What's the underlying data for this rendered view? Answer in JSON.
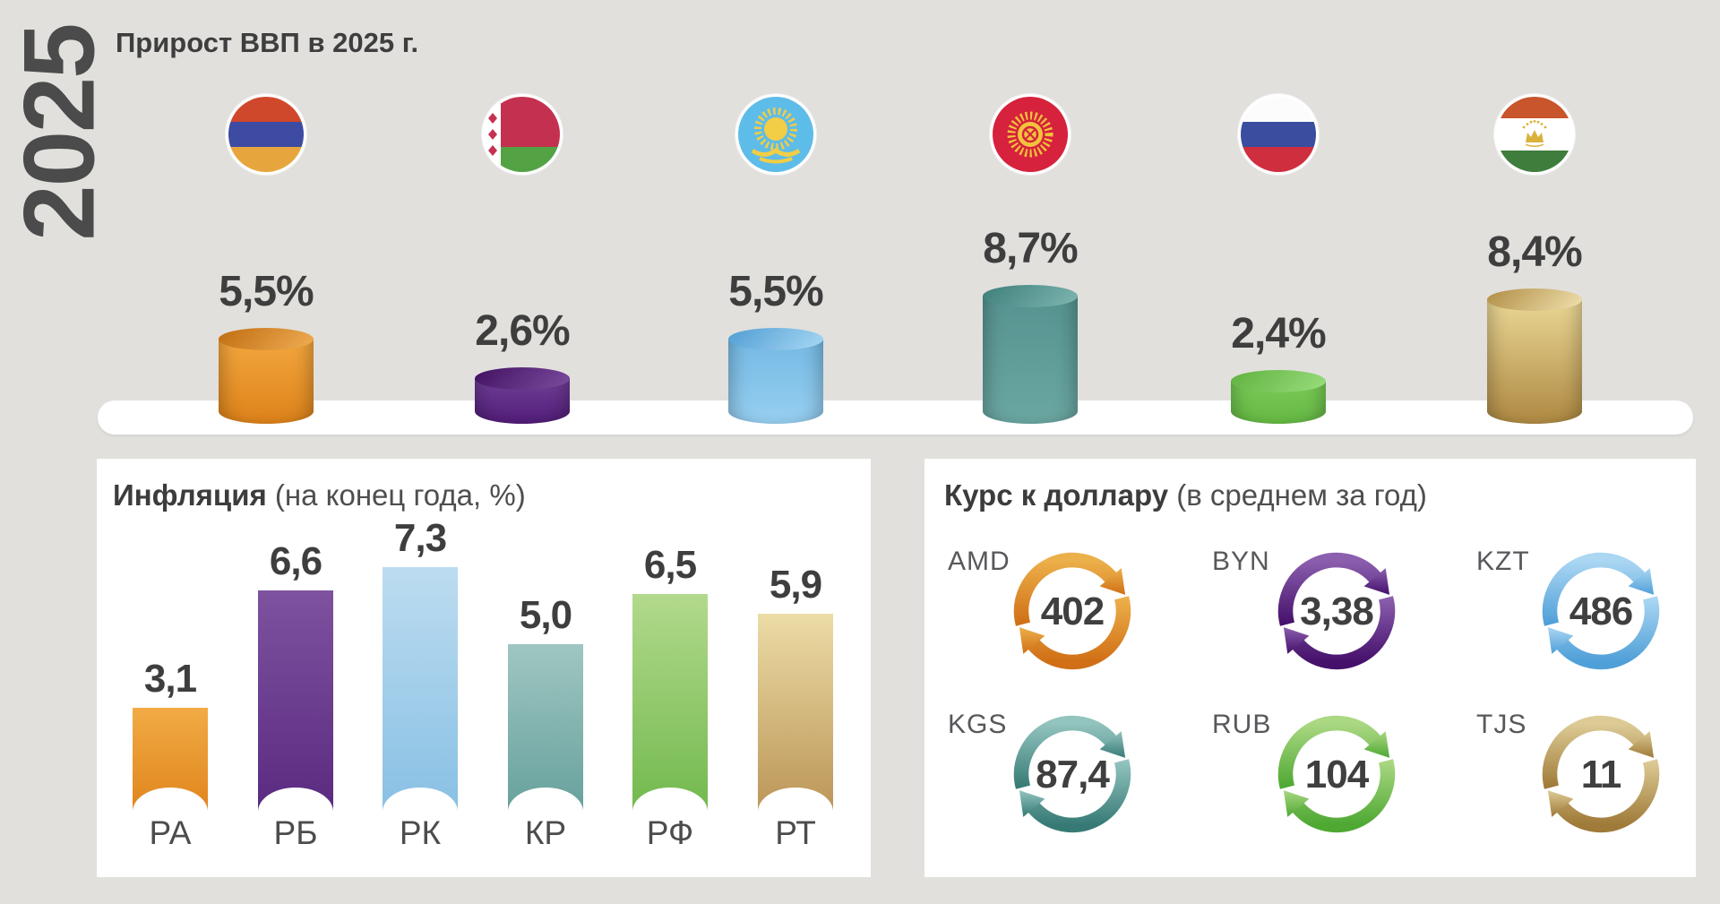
{
  "year": "2025",
  "gdp_section": {
    "title": "Прирост ВВП в 2025 г."
  },
  "inflation_panel": {
    "title_bold": "Инфляция",
    "title_note": " (на конец года, %)"
  },
  "fx_panel": {
    "title_bold": "Курс к доллару",
    "title_note": " (в среднем за год)"
  },
  "chart_data": [
    {
      "type": "bar",
      "variant": "3d-cylinders",
      "title": "Прирост ВВП в 2025 г.",
      "unit": "%",
      "categories": [
        "Армения",
        "Беларусь",
        "Казахстан",
        "Кыргызстан",
        "Россия",
        "Таджикистан"
      ],
      "values": [
        5.5,
        2.6,
        5.5,
        8.7,
        2.4,
        8.4
      ],
      "display": [
        "5,5%",
        "2,6%",
        "5,5%",
        "8,7%",
        "2,4%",
        "8,4%"
      ],
      "legend": "circular country flags above each cylinder",
      "grid": false
    },
    {
      "type": "bar",
      "title": "Инфляция (на конец года, %)",
      "categories": [
        "РА",
        "РБ",
        "РК",
        "КР",
        "РФ",
        "РТ"
      ],
      "values": [
        3.1,
        6.6,
        7.3,
        5.0,
        6.5,
        5.9
      ],
      "display": [
        "3,1",
        "6,6",
        "7,3",
        "5,0",
        "6,5",
        "5,9"
      ],
      "ylim": [
        0,
        8
      ],
      "grid": false,
      "legend_position": "none"
    },
    {
      "type": "table",
      "title": "Курс к доллару (в среднем за год)",
      "categories": [
        "AMD",
        "BYN",
        "KZT",
        "KGS",
        "RUB",
        "TJS"
      ],
      "values": [
        402,
        3.38,
        486,
        87.4,
        104,
        11
      ],
      "display": [
        "402",
        "3,38",
        "486",
        "87,4",
        "104",
        "11"
      ]
    }
  ],
  "colors": {
    "background": "#e1e0dd",
    "panel": "#ffffff",
    "text_dark": "#3e3e3e",
    "text_gray": "#57585b",
    "countries": [
      {
        "key": "armenia",
        "cylinder_body": [
          "#f3a73e",
          "#dd821a"
        ],
        "cylinder_top": [
          "#c06c10",
          "#f0ae54"
        ],
        "bar": [
          "#f2ab45",
          "#e0851c"
        ],
        "fx": [
          "#ecb04a",
          "#d06f15"
        ]
      },
      {
        "key": "belarus",
        "cylinder_body": [
          "#6f3f96",
          "#521d79"
        ],
        "cylinder_top": [
          "#411060",
          "#7c4da0"
        ],
        "bar": [
          "#7e529f",
          "#5a2a80"
        ],
        "fx": [
          "#8b5fae",
          "#45106b"
        ]
      },
      {
        "key": "kazakhstan",
        "cylinder_body": [
          "#74b9e4",
          "#97cff0"
        ],
        "cylinder_top": [
          "#509dd3",
          "#a8d8f4"
        ],
        "bar": [
          "#bcdcf0",
          "#88c0e4"
        ],
        "fx": [
          "#abd7f2",
          "#4f9fd8"
        ]
      },
      {
        "key": "kyrgyzstan",
        "cylinder_body": [
          "#569390",
          "#6ba7a2"
        ],
        "cylinder_top": [
          "#3d7e7a",
          "#7fb7b2"
        ],
        "bar": [
          "#9fc6c2",
          "#67a19c"
        ],
        "fx": [
          "#93c4bf",
          "#377a75"
        ]
      },
      {
        "key": "russia",
        "cylinder_body": [
          "#79c957",
          "#66b944"
        ],
        "cylinder_top": [
          "#5fb13e",
          "#9ade7e"
        ],
        "bar": [
          "#b2d98c",
          "#72b94e"
        ],
        "fx": [
          "#abd883",
          "#4ea832"
        ]
      },
      {
        "key": "tajikistan",
        "cylinder_body": [
          "#ead795",
          "#ae8942"
        ],
        "cylinder_top": [
          "#b18c45",
          "#f0e2ae"
        ],
        "bar": [
          "#ecdca6",
          "#bb9557"
        ],
        "fx": [
          "#ddcb96",
          "#9f7a38"
        ]
      }
    ]
  }
}
